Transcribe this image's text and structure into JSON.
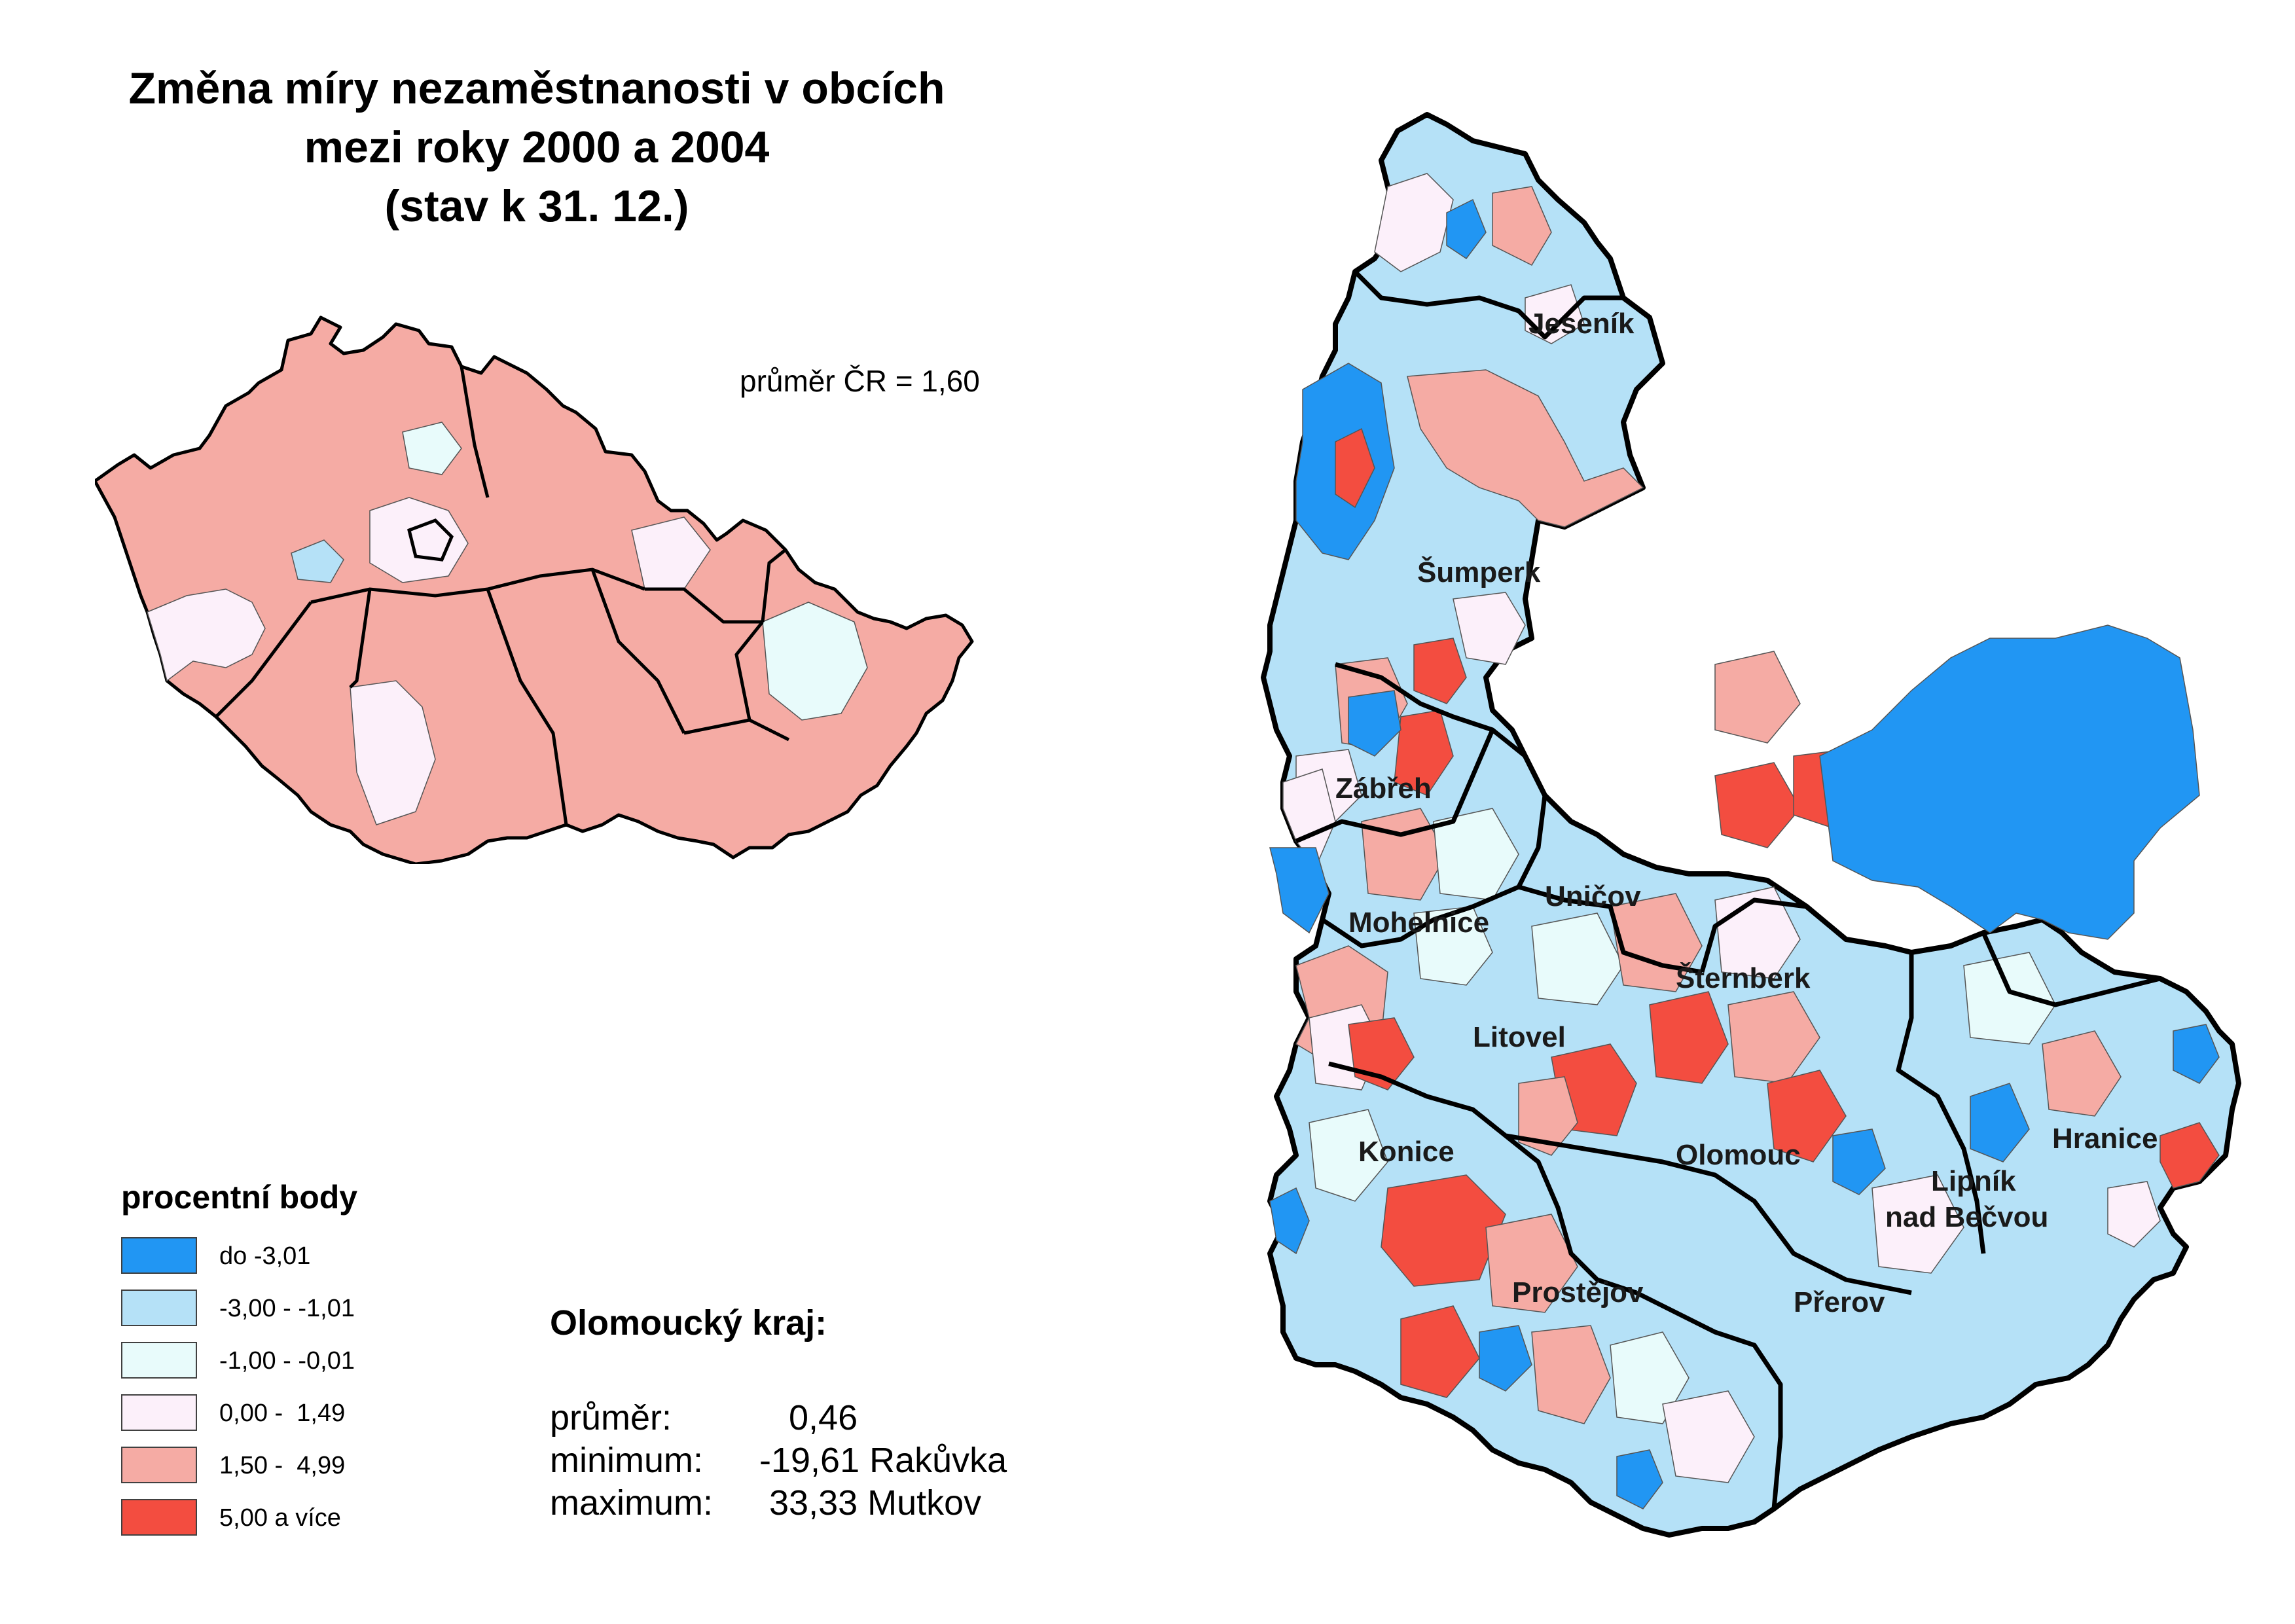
{
  "title": {
    "line1": "Změna míry nezaměstnanosti v obcích",
    "line2": "mezi roky 2000 a 2004",
    "line3": "(stav k 31. 12.)"
  },
  "cr_average": "průměr ČR = 1,60",
  "legend": {
    "title": "procentní body",
    "items": [
      {
        "label": "do -3,01",
        "color": "#2196f3"
      },
      {
        "label": "-3,00 - -1,01",
        "color": "#b5e1f7"
      },
      {
        "label": "-1,00 - -0,01",
        "color": "#e8fbfb"
      },
      {
        "label": "0,00 -  1,49",
        "color": "#fcf0fa"
      },
      {
        "label": "1,50 -  4,99",
        "color": "#f5aba4"
      },
      {
        "label": "5,00 a více",
        "color": "#f34d40"
      }
    ]
  },
  "region_stats": {
    "title": "Olomoucký kraj:",
    "average_label": "průměr:",
    "average_value": "0,46",
    "minimum_label": "minimum:",
    "minimum_value": "-19,61 Rakůvka",
    "maximum_label": "maximum:",
    "maximum_value": "33,33 Mutkov"
  },
  "districts": [
    "Jeseník",
    "Šumperk",
    "Zábřeh",
    "Mohelnice",
    "Uničov",
    "Šternberk",
    "Litovel",
    "Konice",
    "Olomouc",
    "Hranice",
    "Lipník",
    "nad Bečvou",
    "Prostějov",
    "Přerov"
  ]
}
